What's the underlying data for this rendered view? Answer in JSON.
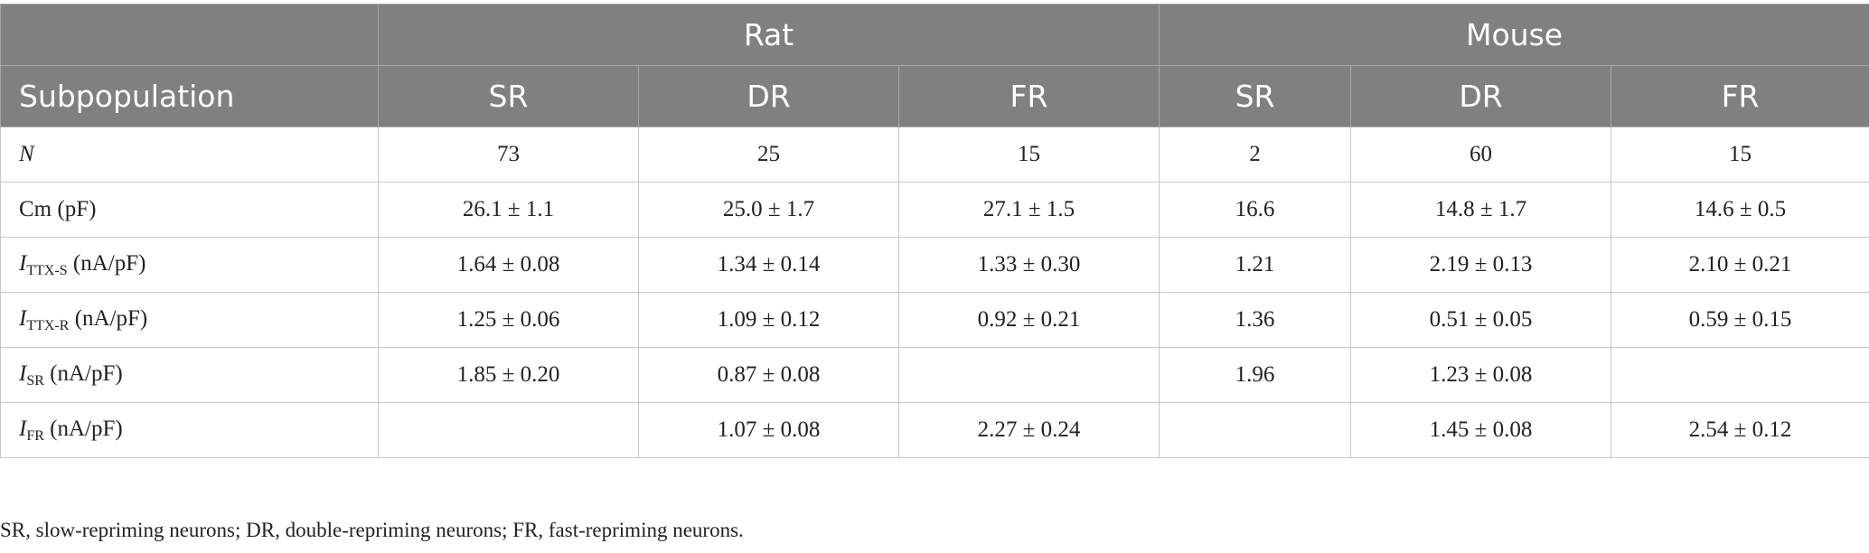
{
  "table": {
    "header_groups": {
      "rat": "Rat",
      "mouse": "Mouse"
    },
    "columns": [
      "Subpopulation",
      "SR",
      "DR",
      "FR",
      "SR",
      "DR",
      "FR"
    ],
    "rows": [
      {
        "label": "N",
        "label_sub": "",
        "label_unit": "",
        "values": [
          "73",
          "25",
          "15",
          "2",
          "60",
          "15"
        ]
      },
      {
        "label": "Cm (pF)",
        "label_sub": "",
        "label_unit": "",
        "values": [
          "26.1 ± 1.1",
          "25.0 ± 1.7",
          "27.1 ± 1.5",
          "16.6",
          "14.8 ± 1.7",
          "14.6 ± 0.5"
        ]
      },
      {
        "label": "I",
        "label_sub": "TTX-S",
        "label_unit": " (nA/pF)",
        "values": [
          "1.64 ± 0.08",
          "1.34 ± 0.14",
          "1.33 ± 0.30",
          "1.21",
          "2.19 ± 0.13",
          "2.10 ± 0.21"
        ]
      },
      {
        "label": "I",
        "label_sub": "TTX-R",
        "label_unit": " (nA/pF)",
        "values": [
          "1.25 ± 0.06",
          "1.09 ± 0.12",
          "0.92 ± 0.21",
          "1.36",
          "0.51 ± 0.05",
          "0.59 ± 0.15"
        ]
      },
      {
        "label": "I",
        "label_sub": "SR",
        "label_unit": " (nA/pF)",
        "values": [
          "1.85 ± 0.20",
          "0.87 ± 0.08",
          "",
          "1.96",
          "1.23 ± 0.08",
          ""
        ]
      },
      {
        "label": "I",
        "label_sub": "FR",
        "label_unit": " (nA/pF)",
        "values": [
          "",
          "1.07 ± 0.08",
          "2.27 ± 0.24",
          "",
          "1.45 ± 0.08",
          "2.54 ± 0.12"
        ]
      }
    ]
  },
  "footnote": "SR, slow-repriming neurons; DR, double-repriming neurons; FR, fast-repriming neurons."
}
